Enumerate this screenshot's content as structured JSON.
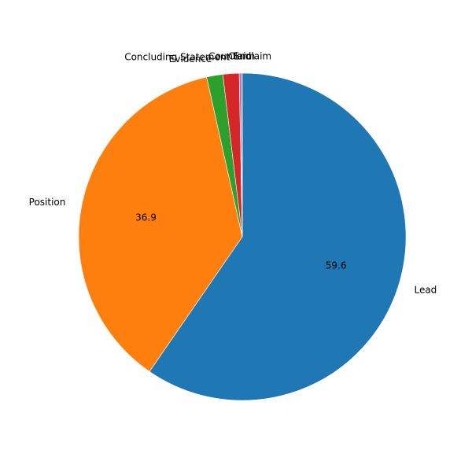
{
  "chart_data": {
    "type": "pie",
    "start_angle_deg": 90,
    "direction": "clockwise",
    "slices": [
      {
        "label": "Lead",
        "value": 59.6,
        "pct_label": "59.6",
        "color": "#1f77b4"
      },
      {
        "label": "Position",
        "value": 36.9,
        "pct_label": "36.9",
        "color": "#ff7f0e"
      },
      {
        "label": "Evidence",
        "value": 1.6,
        "pct_label": "",
        "color": "#2ca02c"
      },
      {
        "label": "Concluding Statement",
        "value": 1.6,
        "pct_label": "",
        "color": "#d62728"
      },
      {
        "label": "Counterclaim",
        "value": 0.2,
        "pct_label": "",
        "color": "#9467bd"
      },
      {
        "label": "Claim",
        "value": 0.1,
        "pct_label": "",
        "color": "#8c564b"
      },
      {
        "label": "End",
        "value": 0.0,
        "pct_label": "",
        "color": "#e377c2"
      }
    ]
  }
}
